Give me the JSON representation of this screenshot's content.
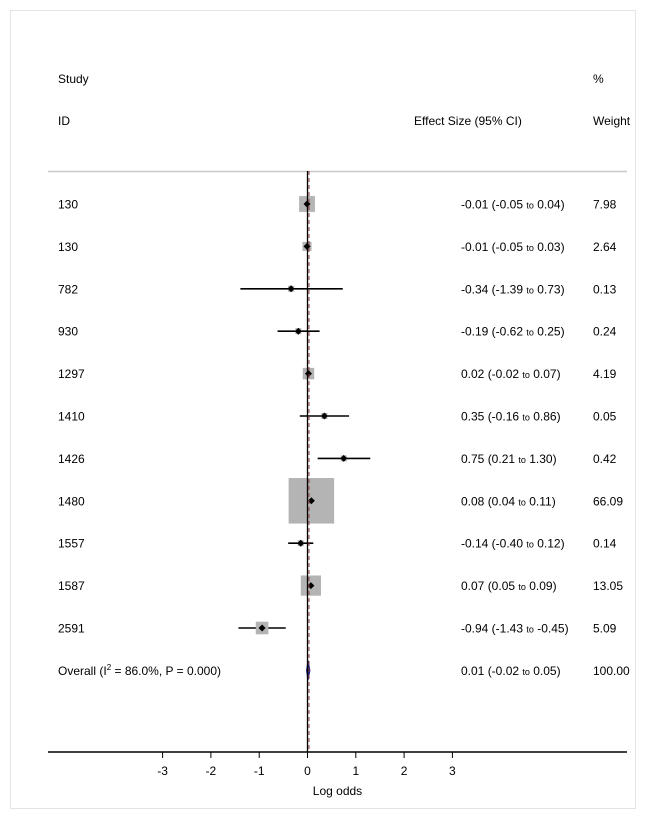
{
  "chart_data": {
    "type": "forest",
    "header": {
      "study_line1": "Study",
      "study_line2": "ID",
      "effect": "Effect Size (95% CI)",
      "weight_line1": "%",
      "weight_line2": "Weight"
    },
    "xlabel": "Log odds",
    "xticks": [
      "-3",
      "-2",
      "-1",
      "0",
      "1",
      "2",
      "3"
    ],
    "xlim": [
      -4.85,
      6.8
    ],
    "studies": [
      {
        "id": "130",
        "es": -0.01,
        "lo": -0.05,
        "hi": 0.04,
        "es_label": "-0.01 (-0.05 ",
        "to": "to",
        "hi_label": " 0.04)",
        "weight": "7.98",
        "w": 7.98
      },
      {
        "id": "130",
        "es": -0.01,
        "lo": -0.05,
        "hi": 0.03,
        "es_label": "-0.01 (-0.05 ",
        "to": "to",
        "hi_label": " 0.03)",
        "weight": "2.64",
        "w": 2.64
      },
      {
        "id": "782",
        "es": -0.34,
        "lo": -1.39,
        "hi": 0.73,
        "es_label": "-0.34 (-1.39 ",
        "to": "to",
        "hi_label": " 0.73)",
        "weight": "0.13",
        "w": 0.13
      },
      {
        "id": "930",
        "es": -0.19,
        "lo": -0.62,
        "hi": 0.25,
        "es_label": "-0.19 (-0.62 ",
        "to": "to",
        "hi_label": " 0.25)",
        "weight": "0.24",
        "w": 0.24
      },
      {
        "id": "1297",
        "es": 0.02,
        "lo": -0.02,
        "hi": 0.07,
        "es_label": "0.02 (-0.02 ",
        "to": "to",
        "hi_label": " 0.07)",
        "weight": "4.19",
        "w": 4.19
      },
      {
        "id": "1410",
        "es": 0.35,
        "lo": -0.16,
        "hi": 0.86,
        "es_label": "0.35 (-0.16 ",
        "to": "to",
        "hi_label": " 0.86)",
        "weight": "0.05",
        "w": 0.05
      },
      {
        "id": "1426",
        "es": 0.75,
        "lo": 0.21,
        "hi": 1.3,
        "es_label": "0.75 (0.21 ",
        "to": "to",
        "hi_label": " 1.30)",
        "weight": "0.42",
        "w": 0.42
      },
      {
        "id": "1480",
        "es": 0.08,
        "lo": 0.04,
        "hi": 0.11,
        "es_label": "0.08 (0.04 ",
        "to": "to",
        "hi_label": " 0.11)",
        "weight": "66.09",
        "w": 66.09
      },
      {
        "id": "1557",
        "es": -0.14,
        "lo": -0.4,
        "hi": 0.12,
        "es_label": "-0.14 (-0.40 ",
        "to": "to",
        "hi_label": " 0.12)",
        "weight": "0.14",
        "w": 0.14
      },
      {
        "id": "1587",
        "es": 0.07,
        "lo": 0.05,
        "hi": 0.09,
        "es_label": "0.07 (0.05 ",
        "to": "to",
        "hi_label": " 0.09)",
        "weight": "13.05",
        "w": 13.05
      },
      {
        "id": "2591",
        "es": -0.94,
        "lo": -1.43,
        "hi": -0.45,
        "es_label": "-0.94 (-1.43 ",
        "to": "to",
        "hi_label": " -0.45)",
        "weight": "5.09",
        "w": 5.09
      }
    ],
    "overall": {
      "label_prefix": "Overall  (I",
      "sup": "2",
      "label_suffix": " = 86.0%,  P = 0.000)",
      "es": 0.01,
      "lo": -0.02,
      "hi": 0.05,
      "es_label": "0.01 (-0.02 ",
      "to": "to",
      "hi_label": " 0.05)",
      "weight": "100.00"
    },
    "colors": {
      "box": "#b4b4b4",
      "diamond": "#1a237e",
      "null_line": "#000000",
      "overall_line": "#8b3a3a",
      "axis": "#000000",
      "divider": "#c8c8c8"
    }
  }
}
